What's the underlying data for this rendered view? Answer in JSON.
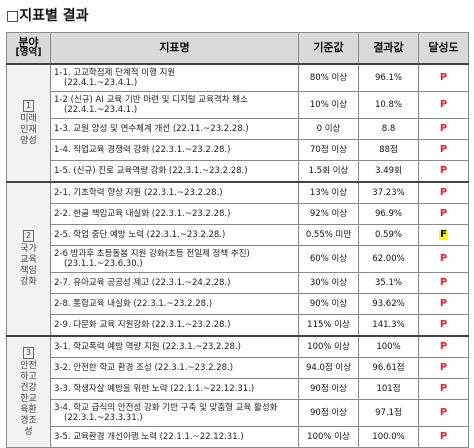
{
  "title": "□지표별 결과",
  "headers": {
    "area": "분야",
    "area_sub": "[영역]",
    "indicator": "지표명",
    "baseline": "기준값",
    "result": "결과값",
    "grade": "달성도"
  },
  "areas": [
    {
      "num": "1",
      "name": "미래인재양성"
    },
    {
      "num": "2",
      "name": "국가교육책임강화"
    },
    {
      "num": "3",
      "name": "안전하고건강한교육환경조성"
    }
  ],
  "rows": [
    {
      "a": 0,
      "l1": "1-1. 고교학점제 단계적 이행 지원",
      "l2": "(22.4.1.~23.4.1.)",
      "base": "80% 이상",
      "res": "96.1%",
      "grade": "P"
    },
    {
      "a": 0,
      "l1": "1-2 (신규) AI 교육 기반 마련 및 디지털 교육격차 해소",
      "l2": "(22.4.1.~23.4.1.)",
      "base": "10% 이상",
      "res": "10.8%",
      "grade": "P"
    },
    {
      "a": 0,
      "l1": "1-3. 교원 양성 및 연수체계 개선 (22.11.~23.2.28.)",
      "l2": "",
      "base": "0 이상",
      "res": "8.8",
      "grade": "P"
    },
    {
      "a": 0,
      "l1": "1-4. 직업교육 경쟁력 강화 (22.3.1.~23.2.28.)",
      "l2": "",
      "base": "70점 이상",
      "res": "88점",
      "grade": "P"
    },
    {
      "a": 0,
      "l1": "1-5. (신규) 진로 교육역량 강화 (22.3.1.~23.2.28.)",
      "l2": "",
      "base": "1.5회 이상",
      "res": "3.49회",
      "grade": "P"
    },
    {
      "a": 1,
      "l1": "2-1. 기초학력 향상 지원 (22.3.1.~23.2.28.)",
      "l2": "",
      "base": "13% 이상",
      "res": "37.23%",
      "grade": "P"
    },
    {
      "a": 1,
      "l1": "2-2. 한글 책임교육 내실화 (22.3.1.~23.2.28.)",
      "l2": "",
      "base": "92% 이상",
      "res": "96.9%",
      "grade": "P"
    },
    {
      "a": 1,
      "l1": "2-5. 학업 중단 예방 노력 (22.3.1.~23.2.28.)",
      "l2": "",
      "base": "0.55% 미만",
      "res": "0.59%",
      "grade": "F"
    },
    {
      "a": 1,
      "l1": "2-6 방과후 초등돌봄 지원 강화(초등 전일제 정책 추진)",
      "l2": "(23.1.1.~23.6.30.)",
      "base": "60% 이상",
      "res": "62.00%",
      "grade": "P"
    },
    {
      "a": 1,
      "l1": "2-7. 유아교육 공공성 제고 (22.3.1.~24.2.28.)",
      "l2": "",
      "base": "30% 이상",
      "res": "35.1%",
      "grade": "P"
    },
    {
      "a": 1,
      "l1": "2-8. 통합교육 내실화 (22.3.1.~23.2.28.)",
      "l2": "",
      "base": "90% 이상",
      "res": "93.62%",
      "grade": "P"
    },
    {
      "a": 1,
      "l1": "2-9. 다문화 교육 지원강화 (22.3.1.~23.2.28.)",
      "l2": "",
      "base": "115% 이상",
      "res": "141.3%",
      "grade": "P"
    },
    {
      "a": 2,
      "l1": "3-1. 학교폭력 예방 역량 지원 (22.3.1.~23.2.28.)",
      "l2": "",
      "base": "100% 이상",
      "res": "100%",
      "grade": "P"
    },
    {
      "a": 2,
      "l1": "3-2. 안전한 학교 환경 조성 (22.3.1.~23.2.28.)",
      "l2": "",
      "base": "94.0점 이상",
      "res": "96.61점",
      "grade": "P"
    },
    {
      "a": 2,
      "l1": "3-3. 학생자살 예방을 위한 노력 (22.1.1.~22.12.31.)",
      "l2": "",
      "base": "90점 이상",
      "res": "101점",
      "grade": "P"
    },
    {
      "a": 2,
      "l1": "3-4. 학교 급식의 안전성 강화 기반 구축 및 맞춤형 교육 활성화",
      "l2": "(22.3.1.~23.3.31.)",
      "base": "90점 이상",
      "res": "97.1점",
      "grade": "P"
    },
    {
      "a": 2,
      "l1": "3-5. 교육환경 개선이행 노력 (22.1.1.~22.12.31.)",
      "l2": "",
      "base": "100% 이상",
      "res": "100.0%",
      "grade": "P"
    }
  ]
}
